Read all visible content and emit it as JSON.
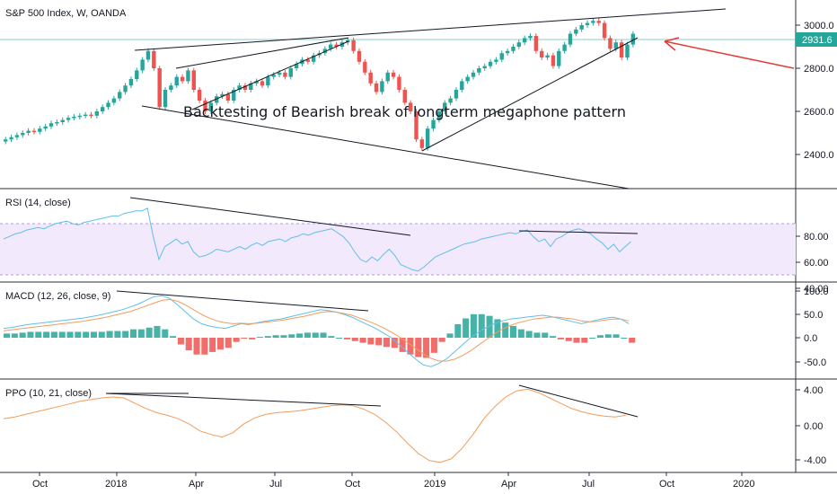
{
  "chart_data": [
    {
      "type": "candlestick",
      "title": "S&P 500 Index, W, OANDA",
      "last_price": "2931.6",
      "yticks": [
        "3000.0",
        "2800.0",
        "2600.0",
        "2400.0"
      ],
      "annotation": "Backtesting of Bearish break of longterm megaphone pattern",
      "colors": {
        "up": "#26a69a",
        "down": "#ef5350",
        "trendline": "#131722",
        "arrow": "#e53935",
        "price_line": "#26a69a"
      }
    },
    {
      "type": "line",
      "title": "RSI (14, close)",
      "yticks": [
        "80.00",
        "60.00",
        "40.00"
      ],
      "band": [
        30,
        70
      ],
      "colors": {
        "line": "#5fbfe8",
        "band": "#f3e9fd"
      }
    },
    {
      "type": "line+bar",
      "title": "MACD (12, 26, close, 9)",
      "yticks": [
        "100.0",
        "50.0",
        "0.0",
        "-50.0"
      ],
      "colors": {
        "macd": "#5fbfe8",
        "signal": "#f39c5a",
        "hist_up": "#26a69a",
        "hist_down": "#ef5350"
      }
    },
    {
      "type": "line",
      "title": "PPO (10, 21, close)",
      "yticks": [
        "4.00",
        "0.00",
        "-4.00"
      ],
      "colors": {
        "line": "#f39c5a"
      }
    }
  ],
  "x_axis": {
    "labels": [
      "Oct",
      "2018",
      "Apr",
      "Jul",
      "Oct",
      "2019",
      "Apr",
      "Jul",
      "Oct",
      "2020"
    ]
  }
}
